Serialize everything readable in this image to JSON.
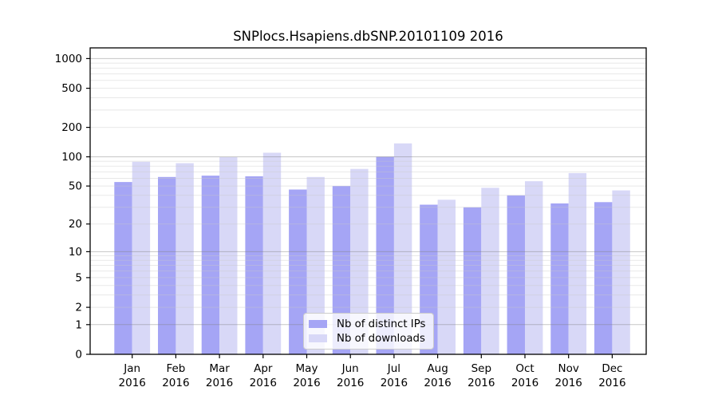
{
  "chart_data": {
    "type": "bar",
    "title": "SNPlocs.Hsapiens.dbSNP.20101109 2016",
    "yscale": "log1p",
    "ylim": [
      0,
      1100
    ],
    "grid": true,
    "legend_position": "bottom-center",
    "categories": [
      {
        "month": "Jan",
        "year": "2016"
      },
      {
        "month": "Feb",
        "year": "2016"
      },
      {
        "month": "Mar",
        "year": "2016"
      },
      {
        "month": "Apr",
        "year": "2016"
      },
      {
        "month": "May",
        "year": "2016"
      },
      {
        "month": "Jun",
        "year": "2016"
      },
      {
        "month": "Jul",
        "year": "2016"
      },
      {
        "month": "Aug",
        "year": "2016"
      },
      {
        "month": "Sep",
        "year": "2016"
      },
      {
        "month": "Oct",
        "year": "2016"
      },
      {
        "month": "Nov",
        "year": "2016"
      },
      {
        "month": "Dec",
        "year": "2016"
      }
    ],
    "series": [
      {
        "name": "Nb of distinct IPs",
        "color": "#a5a5f5",
        "values": [
          55,
          62,
          64,
          63,
          46,
          50,
          100,
          32,
          30,
          40,
          33,
          34
        ]
      },
      {
        "name": "Nb of downloads",
        "color": "#d8d8f7",
        "values": [
          89,
          86,
          99,
          110,
          62,
          75,
          137,
          36,
          48,
          56,
          68,
          45
        ]
      }
    ],
    "yticks": [
      {
        "label": "0",
        "value": 0
      },
      {
        "label": "1",
        "value": 1
      },
      {
        "label": "2",
        "value": 2
      },
      {
        "label": "5",
        "value": 5
      },
      {
        "label": "10",
        "value": 10
      },
      {
        "label": "20",
        "value": 20
      },
      {
        "label": "50",
        "value": 50
      },
      {
        "label": "100",
        "value": 100
      },
      {
        "label": "200",
        "value": 200
      },
      {
        "label": "500",
        "value": 500
      },
      {
        "label": "1000",
        "value": 1000
      }
    ],
    "colors": {
      "major_grid": "#808080",
      "minor_grid": "#c8c8c8",
      "frame": "#000000",
      "background": "#ffffff"
    }
  }
}
